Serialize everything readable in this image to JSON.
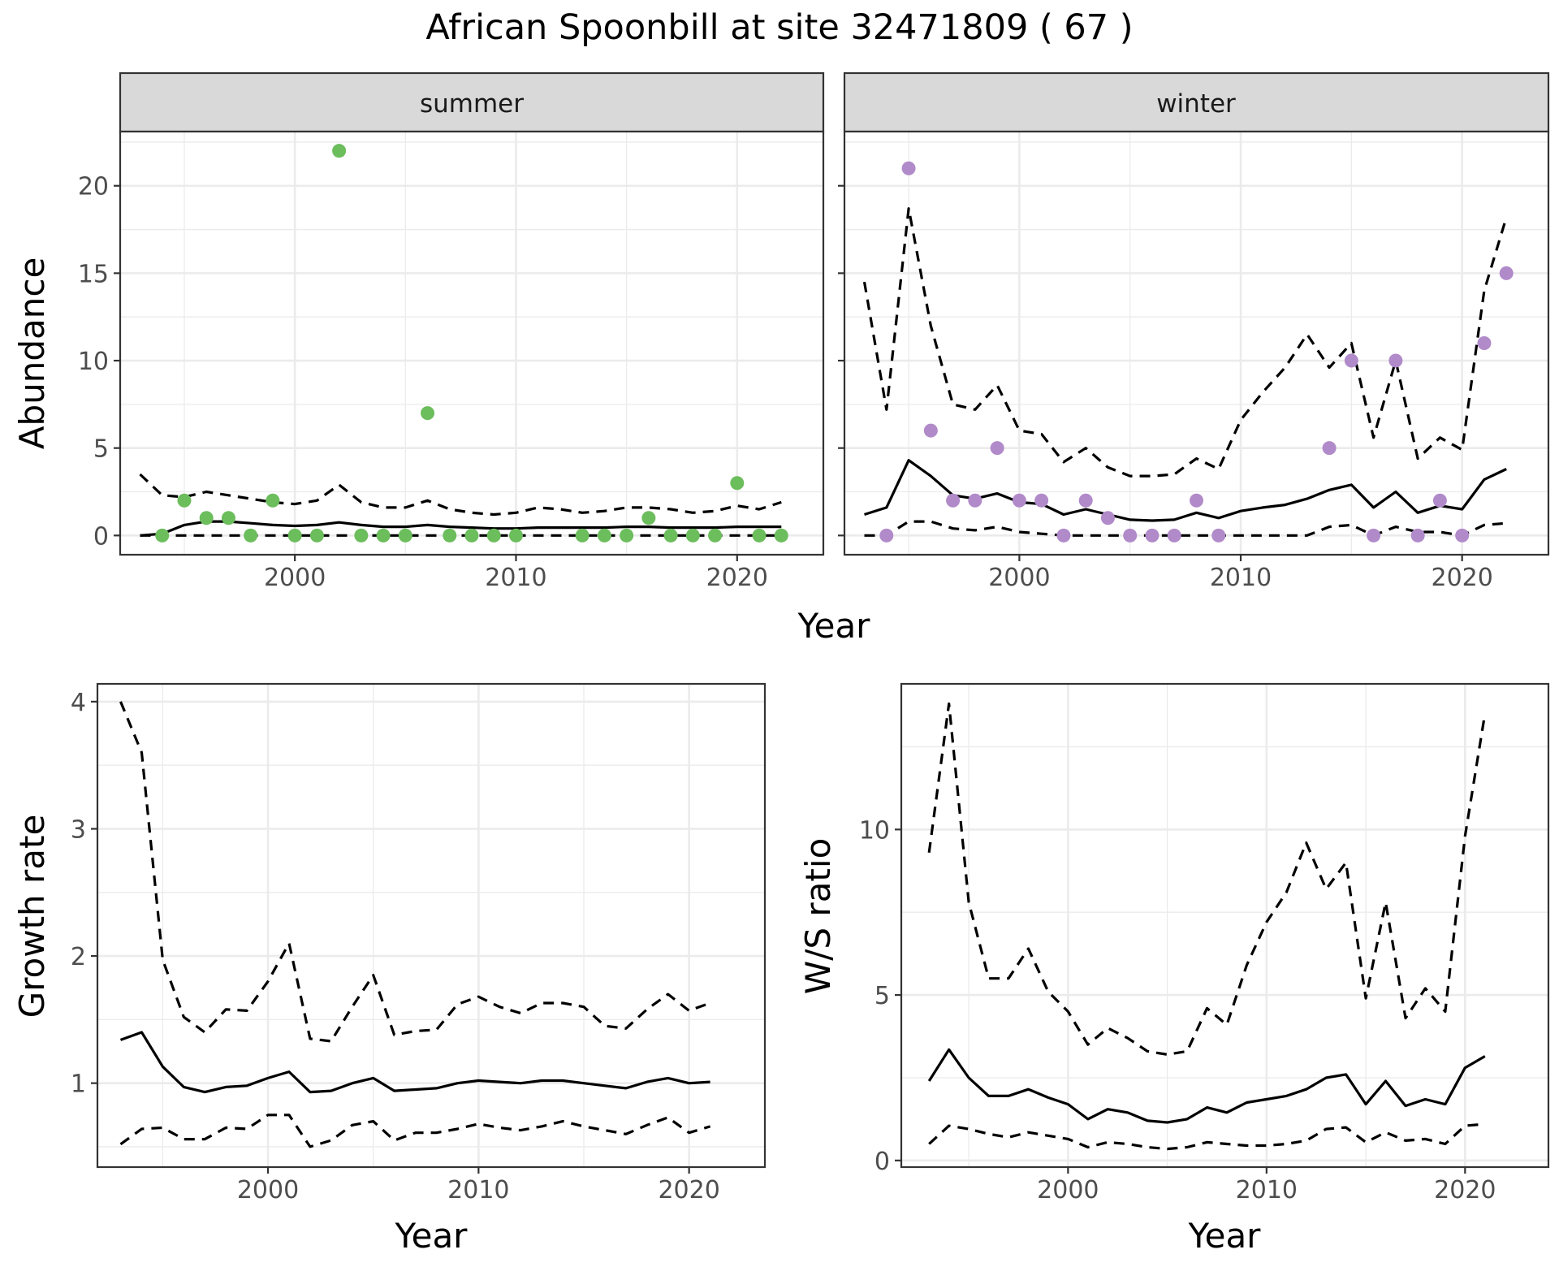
{
  "title": "African Spoonbill at site 32471809 ( 67 )",
  "chart_data": [
    {
      "type": "scatter",
      "panel": "summer",
      "strip_label": "summer",
      "xlabel": "Year",
      "ylabel": "Abundance",
      "xlim": [
        1992.1,
        2023.9
      ],
      "ylim": [
        -1.1,
        23.1
      ],
      "xticks": [
        2000,
        2010,
        2020
      ],
      "yticks": [
        0,
        5,
        10,
        15,
        20
      ],
      "grid": true,
      "point_color": "#6cbd5c",
      "points": {
        "x": [
          1994,
          1995,
          1996,
          1997,
          1998,
          1999,
          2000,
          2001,
          2002,
          2003,
          2004,
          2005,
          2006,
          2007,
          2008,
          2009,
          2010,
          2013,
          2014,
          2015,
          2016,
          2017,
          2018,
          2019,
          2020,
          2021,
          2022
        ],
        "y": [
          0,
          2,
          1,
          1,
          0,
          2,
          0,
          0,
          22,
          0,
          0,
          0,
          7,
          0,
          0,
          0,
          0,
          0,
          0,
          0,
          1,
          0,
          0,
          0,
          3,
          0,
          0
        ]
      },
      "series": [
        {
          "style": "solid",
          "x": [
            1993,
            1994,
            1995,
            1996,
            1997,
            1998,
            1999,
            2000,
            2001,
            2002,
            2003,
            2004,
            2005,
            2006,
            2007,
            2008,
            2009,
            2010,
            2011,
            2012,
            2013,
            2014,
            2015,
            2016,
            2017,
            2018,
            2019,
            2020,
            2021,
            2022
          ],
          "values": [
            0,
            0.1,
            0.6,
            0.8,
            0.8,
            0.7,
            0.6,
            0.55,
            0.6,
            0.75,
            0.6,
            0.5,
            0.5,
            0.6,
            0.5,
            0.45,
            0.4,
            0.4,
            0.45,
            0.45,
            0.45,
            0.45,
            0.5,
            0.5,
            0.45,
            0.45,
            0.45,
            0.5,
            0.5,
            0.5
          ]
        },
        {
          "style": "dashed",
          "x": [
            1993,
            1994,
            1995,
            1996,
            1997,
            1998,
            1999,
            2000,
            2001,
            2002,
            2003,
            2004,
            2005,
            2006,
            2007,
            2008,
            2009,
            2010,
            2011,
            2012,
            2013,
            2014,
            2015,
            2016,
            2017,
            2018,
            2019,
            2020,
            2021,
            2022
          ],
          "values": [
            3.5,
            2.3,
            2.2,
            2.5,
            2.3,
            2.1,
            1.9,
            1.8,
            2.0,
            2.9,
            1.9,
            1.6,
            1.6,
            2.0,
            1.5,
            1.3,
            1.2,
            1.3,
            1.6,
            1.5,
            1.3,
            1.4,
            1.6,
            1.6,
            1.5,
            1.3,
            1.4,
            1.7,
            1.5,
            1.9
          ]
        },
        {
          "style": "dashed",
          "x": [
            1993,
            2022
          ],
          "values": [
            0,
            0
          ]
        }
      ]
    },
    {
      "type": "scatter",
      "panel": "winter",
      "strip_label": "winter",
      "xlabel": "Year",
      "ylabel": "Abundance",
      "xlim": [
        1992.1,
        2023.9
      ],
      "ylim": [
        -1.1,
        23.1
      ],
      "xticks": [
        2000,
        2010,
        2020
      ],
      "yticks": [
        0,
        5,
        10,
        15,
        20
      ],
      "grid": true,
      "point_color": "#b18ac9",
      "points": {
        "x": [
          1994,
          1995,
          1996,
          1997,
          1998,
          1999,
          2000,
          2001,
          2002,
          2003,
          2004,
          2005,
          2006,
          2007,
          2008,
          2009,
          2014,
          2015,
          2016,
          2017,
          2018,
          2019,
          2020,
          2021,
          2022
        ],
        "y": [
          0,
          21,
          6,
          2,
          2,
          5,
          2,
          2,
          0,
          2,
          1,
          0,
          0,
          0,
          2,
          0,
          5,
          10,
          0,
          10,
          0,
          2,
          0,
          11,
          15
        ]
      },
      "series": [
        {
          "style": "solid",
          "x": [
            1993,
            1994,
            1995,
            1996,
            1997,
            1998,
            1999,
            2000,
            2001,
            2002,
            2003,
            2004,
            2005,
            2006,
            2007,
            2008,
            2009,
            2010,
            2011,
            2012,
            2013,
            2014,
            2015,
            2016,
            2017,
            2018,
            2019,
            2020,
            2021,
            2022
          ],
          "values": [
            1.2,
            1.6,
            4.3,
            3.4,
            2.3,
            2.1,
            2.4,
            1.9,
            1.8,
            1.2,
            1.5,
            1.2,
            0.9,
            0.85,
            0.9,
            1.3,
            1.0,
            1.4,
            1.6,
            1.75,
            2.1,
            2.6,
            2.9,
            1.6,
            2.5,
            1.3,
            1.7,
            1.5,
            3.2,
            3.8
          ]
        },
        {
          "style": "dashed",
          "x": [
            1993,
            1994,
            1995,
            1996,
            1997,
            1998,
            1999,
            2000,
            2001,
            2002,
            2003,
            2004,
            2005,
            2006,
            2007,
            2008,
            2009,
            2010,
            2011,
            2012,
            2013,
            2014,
            2015,
            2016,
            2017,
            2018,
            2019,
            2020,
            2021,
            2022
          ],
          "values": [
            14.5,
            7.2,
            18.7,
            12.0,
            7.5,
            7.2,
            8.6,
            6.0,
            5.8,
            4.2,
            5.0,
            3.9,
            3.4,
            3.4,
            3.5,
            4.4,
            3.8,
            6.6,
            8.2,
            9.6,
            11.5,
            9.6,
            11.0,
            5.6,
            10.0,
            4.4,
            5.6,
            4.9,
            14.0,
            18.2
          ]
        },
        {
          "style": "dashed",
          "x": [
            1993,
            1994,
            1995,
            1996,
            1997,
            1998,
            1999,
            2000,
            2001,
            2002,
            2003,
            2004,
            2005,
            2006,
            2007,
            2008,
            2009,
            2010,
            2011,
            2012,
            2013,
            2014,
            2015,
            2016,
            2017,
            2018,
            2019,
            2020,
            2021,
            2022
          ],
          "values": [
            0,
            0,
            0.8,
            0.8,
            0.4,
            0.3,
            0.5,
            0.2,
            0.1,
            0,
            0,
            0,
            0,
            0,
            0,
            0,
            0,
            0,
            0,
            0,
            0,
            0.5,
            0.6,
            0,
            0.5,
            0.2,
            0.2,
            0,
            0.6,
            0.7
          ]
        }
      ]
    },
    {
      "type": "line",
      "panel": "growth",
      "xlabel": "Year",
      "ylabel": "Growth rate",
      "xlim": [
        1991.9,
        2023.6
      ],
      "ylim": [
        0.34,
        4.14
      ],
      "xticks": [
        2000,
        2010,
        2020
      ],
      "yticks": [
        1,
        2,
        3,
        4
      ],
      "grid": true,
      "series": [
        {
          "style": "solid",
          "x": [
            1993,
            1994,
            1995,
            1996,
            1997,
            1998,
            1999,
            2000,
            2001,
            2002,
            2003,
            2004,
            2005,
            2006,
            2007,
            2008,
            2009,
            2010,
            2011,
            2012,
            2013,
            2014,
            2015,
            2016,
            2017,
            2018,
            2019,
            2020,
            2021
          ],
          "values": [
            1.34,
            1.4,
            1.13,
            0.97,
            0.93,
            0.97,
            0.98,
            1.04,
            1.09,
            0.93,
            0.94,
            1.0,
            1.04,
            0.94,
            0.95,
            0.96,
            1.0,
            1.02,
            1.01,
            1.0,
            1.02,
            1.02,
            1.0,
            0.98,
            0.96,
            1.01,
            1.04,
            1.0,
            1.01
          ]
        },
        {
          "style": "dashed",
          "x": [
            1993,
            1994,
            1995,
            1996,
            1997,
            1998,
            1999,
            2000,
            2001,
            2002,
            2003,
            2004,
            2005,
            2006,
            2007,
            2008,
            2009,
            2010,
            2011,
            2012,
            2013,
            2014,
            2015,
            2016,
            2017,
            2018,
            2019,
            2020,
            2021
          ],
          "values": [
            4.0,
            3.6,
            1.97,
            1.52,
            1.4,
            1.58,
            1.57,
            1.8,
            2.1,
            1.35,
            1.33,
            1.6,
            1.85,
            1.38,
            1.41,
            1.42,
            1.62,
            1.68,
            1.6,
            1.55,
            1.63,
            1.63,
            1.6,
            1.45,
            1.43,
            1.58,
            1.7,
            1.57,
            1.63
          ]
        },
        {
          "style": "dashed",
          "x": [
            1993,
            1994,
            1995,
            1996,
            1997,
            1998,
            1999,
            2000,
            2001,
            2002,
            2003,
            2004,
            2005,
            2006,
            2007,
            2008,
            2009,
            2010,
            2011,
            2012,
            2013,
            2014,
            2015,
            2016,
            2017,
            2018,
            2019,
            2020,
            2021
          ],
          "values": [
            0.52,
            0.64,
            0.65,
            0.56,
            0.56,
            0.65,
            0.64,
            0.75,
            0.75,
            0.5,
            0.55,
            0.67,
            0.7,
            0.55,
            0.61,
            0.61,
            0.64,
            0.68,
            0.65,
            0.63,
            0.66,
            0.7,
            0.66,
            0.63,
            0.6,
            0.67,
            0.73,
            0.61,
            0.66
          ]
        }
      ]
    },
    {
      "type": "line",
      "panel": "ratio",
      "xlabel": "Year",
      "ylabel": "W/S ratio",
      "xlim": [
        1991.6,
        2024.2
      ],
      "ylim": [
        -0.2,
        14.4
      ],
      "xticks": [
        2000,
        2010,
        2020
      ],
      "yticks": [
        0,
        5,
        10
      ],
      "grid": true,
      "series": [
        {
          "style": "solid",
          "x": [
            1993,
            1994,
            1995,
            1996,
            1997,
            1998,
            1999,
            2000,
            2001,
            2002,
            2003,
            2004,
            2005,
            2006,
            2007,
            2008,
            2009,
            2010,
            2011,
            2012,
            2013,
            2014,
            2015,
            2016,
            2017,
            2018,
            2019,
            2020,
            2021
          ],
          "values": [
            2.4,
            3.35,
            2.5,
            1.95,
            1.95,
            2.15,
            1.9,
            1.7,
            1.25,
            1.55,
            1.45,
            1.2,
            1.15,
            1.25,
            1.6,
            1.45,
            1.75,
            1.85,
            1.95,
            2.15,
            2.5,
            2.6,
            1.7,
            2.4,
            1.65,
            1.85,
            1.7,
            2.8,
            3.15
          ]
        },
        {
          "style": "dashed",
          "x": [
            1993,
            1994,
            1995,
            1996,
            1997,
            1998,
            1999,
            2000,
            2001,
            2002,
            2003,
            2004,
            2005,
            2006,
            2007,
            2008,
            2009,
            2010,
            2011,
            2012,
            2013,
            2014,
            2015,
            2016,
            2017,
            2018,
            2019,
            2020,
            2021
          ],
          "values": [
            9.3,
            13.8,
            7.8,
            5.5,
            5.5,
            6.4,
            5.1,
            4.5,
            3.5,
            4.0,
            3.7,
            3.3,
            3.2,
            3.3,
            4.6,
            4.1,
            5.9,
            7.2,
            8.1,
            9.6,
            8.2,
            9.0,
            4.9,
            7.8,
            4.3,
            5.2,
            4.5,
            9.8,
            13.5
          ]
        },
        {
          "style": "dashed",
          "x": [
            1993,
            1994,
            1995,
            1996,
            1997,
            1998,
            1999,
            2000,
            2001,
            2002,
            2003,
            2004,
            2005,
            2006,
            2007,
            2008,
            2009,
            2010,
            2011,
            2012,
            2013,
            2014,
            2015,
            2016,
            2017,
            2018,
            2019,
            2020,
            2021
          ],
          "values": [
            0.5,
            1.05,
            0.95,
            0.8,
            0.7,
            0.85,
            0.75,
            0.65,
            0.4,
            0.55,
            0.5,
            0.4,
            0.35,
            0.4,
            0.55,
            0.5,
            0.45,
            0.45,
            0.5,
            0.6,
            0.95,
            1.0,
            0.55,
            0.85,
            0.6,
            0.65,
            0.5,
            1.05,
            1.1
          ]
        }
      ]
    }
  ]
}
